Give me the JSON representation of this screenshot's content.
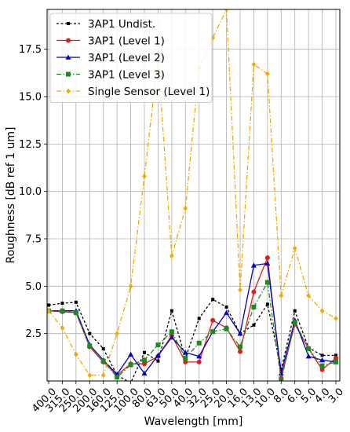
{
  "chart_data": {
    "type": "line",
    "xlabel": "Wavelength [mm]",
    "ylabel": "Roughness [dB ref 1 um]",
    "categories": [
      "400.0",
      "315.0",
      "250.0",
      "200.0",
      "160.0",
      "125.0",
      "100.0",
      "80.0",
      "63.0",
      "50.0",
      "40.0",
      "32.0",
      "25.0",
      "20.0",
      "16.0",
      "13.0",
      "10.0",
      "8.0",
      "6.0",
      "5.0",
      "4.0",
      "3.0"
    ],
    "ylim": [
      0,
      19.6
    ],
    "yticks": [
      2.5,
      5.0,
      7.5,
      10.0,
      12.5,
      15.0,
      17.5
    ],
    "ytick_labels": [
      "2.5",
      "5.0",
      "7.5",
      "10.0",
      "12.5",
      "15.0",
      "17.5"
    ],
    "grid": true,
    "legend_position": "top-left",
    "series": [
      {
        "name": "3AP1 Undist.",
        "color": "#000000",
        "dash": "3,2.5",
        "marker": "square",
        "marker_size": 2,
        "values": [
          4.0,
          4.1,
          4.15,
          2.5,
          1.7,
          0.3,
          -0.1,
          1.5,
          1.05,
          3.7,
          1.2,
          3.3,
          4.3,
          3.9,
          2.5,
          2.95,
          4.05,
          0.6,
          3.7,
          1.75,
          1.35,
          1.35
        ]
      },
      {
        "name": "3AP1 (Level 1)",
        "color": "#e41a1c",
        "dash": "",
        "marker": "circle",
        "marker_size": 3,
        "values": [
          3.7,
          3.65,
          3.6,
          1.8,
          1.0,
          0.3,
          0.9,
          0.9,
          1.3,
          2.4,
          1.0,
          1.0,
          3.2,
          2.8,
          1.55,
          4.7,
          6.5,
          0.15,
          3.0,
          1.7,
          0.6,
          1.2
        ]
      },
      {
        "name": "3AP1 (Level 2)",
        "color": "#0000c8",
        "dash": "",
        "marker": "triangle",
        "marker_size": 3.5,
        "values": [
          3.7,
          3.7,
          3.7,
          1.9,
          1.1,
          0.35,
          1.4,
          0.4,
          1.35,
          2.3,
          1.5,
          1.3,
          2.6,
          3.6,
          2.5,
          6.1,
          6.2,
          0.4,
          3.2,
          1.3,
          1.1,
          1.0
        ]
      },
      {
        "name": "3AP1 (Level 3)",
        "color": "#1a8c1a",
        "dash": "6,2.5,1.5,2.5",
        "marker": "square",
        "marker_size": 3,
        "values": [
          3.7,
          3.7,
          3.6,
          1.85,
          1.05,
          0.2,
          0.85,
          1.1,
          1.9,
          2.6,
          1.2,
          2.0,
          2.6,
          2.75,
          1.8,
          3.9,
          5.2,
          0.05,
          3.1,
          1.7,
          0.8,
          1.0
        ]
      },
      {
        "name": "Single Sensor (Level 1)",
        "color": "#f7a800",
        "dash": "6,2.5,1.5,2.5",
        "marker": "diamond",
        "marker_size": 3.5,
        "values": [
          3.7,
          2.8,
          1.4,
          0.3,
          0.3,
          2.5,
          5.0,
          10.8,
          17.0,
          6.6,
          9.1,
          16.5,
          18.1,
          19.6,
          4.8,
          16.7,
          16.2,
          4.5,
          7.0,
          4.5,
          3.7,
          3.3
        ]
      }
    ]
  }
}
